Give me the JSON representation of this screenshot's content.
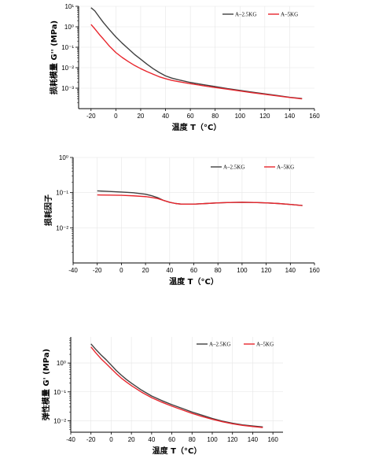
{
  "chart_data": [
    {
      "type": "line",
      "xlabel": "温度 T（°C）",
      "ylabel": "损耗模量 G'' (MPa)",
      "yscale": "log",
      "xlim": [
        -30,
        160
      ],
      "ylim": [
        0.001,
        100
      ],
      "xticks": [
        "-20",
        "0",
        "20",
        "40",
        "60",
        "80",
        "100",
        "120",
        "140",
        "160"
      ],
      "yticks": [
        "10⁻³",
        "10⁻²",
        "10⁻¹",
        "10⁰",
        "10¹",
        "10²"
      ],
      "legend_position": "top-right",
      "grid": true,
      "series": [
        {
          "name": "A–2.5KG",
          "color": "#404040",
          "x": [
            -20,
            -17,
            -13,
            -10,
            -5,
            0,
            5,
            10,
            15,
            20,
            25,
            30,
            35,
            40,
            45,
            50,
            60,
            70,
            80,
            90,
            100,
            110,
            120,
            130,
            140,
            150
          ],
          "y": [
            85,
            60,
            28,
            16,
            7,
            3.2,
            1.6,
            0.85,
            0.45,
            0.26,
            0.15,
            0.09,
            0.058,
            0.04,
            0.031,
            0.026,
            0.019,
            0.015,
            0.012,
            0.0095,
            0.0078,
            0.0064,
            0.0053,
            0.0044,
            0.0036,
            0.0031
          ]
        },
        {
          "name": "A–5KG",
          "color": "#e8262d",
          "x": [
            -20,
            -17,
            -13,
            -10,
            -5,
            0,
            5,
            10,
            15,
            20,
            25,
            30,
            35,
            40,
            45,
            50,
            60,
            70,
            80,
            90,
            100,
            110,
            120,
            130,
            140,
            150
          ],
          "y": [
            13,
            8,
            4,
            2.5,
            1.1,
            0.55,
            0.32,
            0.2,
            0.13,
            0.09,
            0.065,
            0.048,
            0.036,
            0.029,
            0.024,
            0.021,
            0.0165,
            0.0133,
            0.0108,
            0.0089,
            0.0073,
            0.006,
            0.005,
            0.0042,
            0.0035,
            0.003
          ]
        }
      ]
    },
    {
      "type": "line",
      "xlabel": "温度 T（°C）",
      "ylabel": "损耗因子",
      "yscale": "log",
      "xlim": [
        -40,
        160
      ],
      "ylim": [
        0.01,
        10
      ],
      "xticks": [
        "-40",
        "-20",
        "0",
        "20",
        "40",
        "60",
        "80",
        "100",
        "120",
        "140",
        "160"
      ],
      "yticks": [
        "10⁻²",
        "10⁻¹",
        "10⁰"
      ],
      "legend_position": "top-right",
      "grid": true,
      "series": [
        {
          "name": "A–2.5KG",
          "color": "#404040",
          "x": [
            -20,
            -10,
            0,
            10,
            20,
            25,
            30,
            35,
            40,
            45,
            50,
            60,
            70,
            80,
            90,
            100,
            110,
            120,
            130,
            140,
            150
          ],
          "y": [
            1.12,
            1.08,
            1.04,
            0.99,
            0.9,
            0.82,
            0.72,
            0.6,
            0.53,
            0.49,
            0.47,
            0.47,
            0.49,
            0.51,
            0.525,
            0.53,
            0.525,
            0.51,
            0.49,
            0.46,
            0.43
          ]
        },
        {
          "name": "A–5KG",
          "color": "#e8262d",
          "x": [
            -20,
            -10,
            0,
            10,
            20,
            25,
            30,
            35,
            40,
            45,
            50,
            60,
            70,
            80,
            90,
            100,
            110,
            120,
            130,
            140,
            150
          ],
          "y": [
            0.86,
            0.85,
            0.84,
            0.81,
            0.77,
            0.73,
            0.68,
            0.6,
            0.53,
            0.49,
            0.47,
            0.47,
            0.49,
            0.51,
            0.525,
            0.53,
            0.525,
            0.51,
            0.49,
            0.46,
            0.43
          ]
        }
      ]
    },
    {
      "type": "line",
      "xlabel": "温度 T（°C）",
      "ylabel": "弹性模量 G' (MPa)",
      "yscale": "log",
      "xlim": [
        -40,
        170
      ],
      "ylim": [
        0.004,
        8
      ],
      "xticks": [
        "-40",
        "-20",
        "0",
        "20",
        "40",
        "60",
        "80",
        "100",
        "120",
        "140",
        "160"
      ],
      "yticks": [
        "10⁻²",
        "10⁻¹",
        "10⁰"
      ],
      "legend_position": "top-right",
      "grid": true,
      "series": [
        {
          "name": "A–2.5KG",
          "color": "#404040",
          "x": [
            -20,
            -15,
            -10,
            -5,
            0,
            5,
            10,
            15,
            20,
            30,
            40,
            50,
            60,
            70,
            80,
            90,
            100,
            110,
            120,
            130,
            140,
            150
          ],
          "y": [
            4.6,
            2.9,
            1.9,
            1.3,
            0.85,
            0.55,
            0.38,
            0.27,
            0.2,
            0.115,
            0.072,
            0.05,
            0.036,
            0.027,
            0.02,
            0.0155,
            0.012,
            0.0097,
            0.0082,
            0.0072,
            0.0066,
            0.0061
          ]
        },
        {
          "name": "A–5KG",
          "color": "#e8262d",
          "x": [
            -20,
            -15,
            -10,
            -5,
            0,
            5,
            10,
            15,
            20,
            30,
            40,
            50,
            60,
            70,
            80,
            90,
            100,
            110,
            120,
            130,
            140,
            150
          ],
          "y": [
            3.6,
            2.2,
            1.4,
            0.95,
            0.64,
            0.43,
            0.3,
            0.22,
            0.165,
            0.098,
            0.063,
            0.044,
            0.032,
            0.024,
            0.018,
            0.014,
            0.0112,
            0.0092,
            0.0078,
            0.0069,
            0.0063,
            0.0058
          ]
        }
      ]
    }
  ]
}
